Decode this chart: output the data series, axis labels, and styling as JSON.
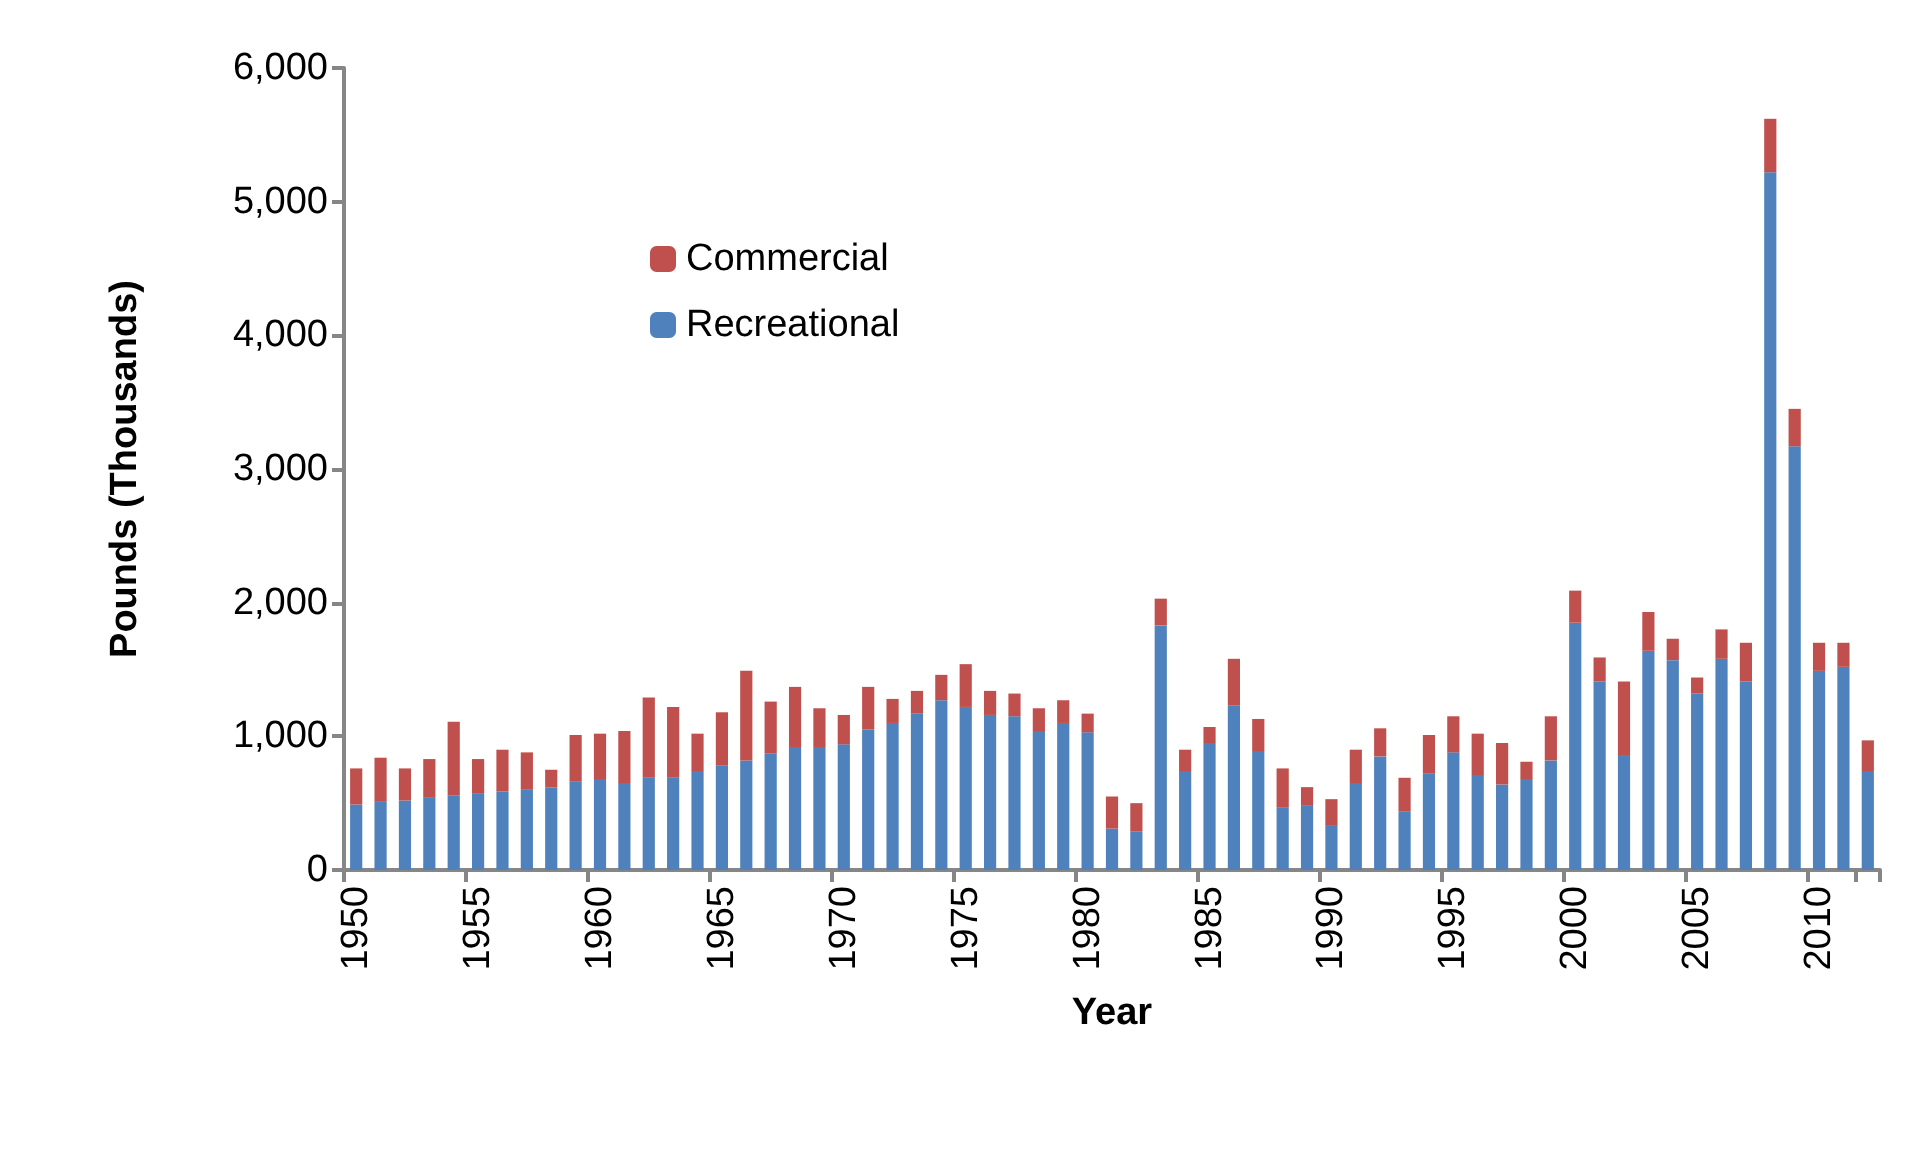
{
  "chart_data": {
    "type": "bar",
    "stacked": true,
    "xlabel": "Year",
    "ylabel": "Pounds (Thousands)",
    "categories": [
      "1950",
      null,
      null,
      null,
      null,
      "1955",
      null,
      null,
      null,
      null,
      "1960",
      null,
      null,
      null,
      null,
      "1965",
      null,
      null,
      null,
      null,
      "1970",
      null,
      null,
      null,
      null,
      "1975",
      null,
      null,
      null,
      null,
      "1980",
      null,
      null,
      null,
      null,
      "1985",
      null,
      null,
      null,
      null,
      "1990",
      null,
      null,
      null,
      null,
      "1995",
      null,
      null,
      null,
      null,
      "2000",
      null,
      null,
      null,
      null,
      "2005",
      null,
      null,
      null,
      null,
      "2010",
      null,
      null
    ],
    "series": [
      {
        "name": "Recreational",
        "color": "#4f81bd",
        "values": [
          490,
          510,
          520,
          540,
          560,
          570,
          590,
          600,
          620,
          660,
          680,
          650,
          690,
          690,
          740,
          780,
          820,
          870,
          920,
          920,
          940,
          1050,
          1100,
          1170,
          1270,
          1220,
          1160,
          1150,
          1040,
          1100,
          1030,
          310,
          290,
          1830,
          740,
          950,
          1230,
          890,
          470,
          480,
          330,
          650,
          850,
          440,
          720,
          880,
          710,
          640,
          680,
          820,
          1850,
          1410,
          860,
          1640,
          1570,
          1320,
          1580,
          1410,
          5220,
          3170,
          1490,
          1520,
          740
        ]
      },
      {
        "name": "Commercial",
        "color": "#c0504d",
        "values": [
          270,
          330,
          240,
          290,
          550,
          260,
          310,
          280,
          130,
          350,
          340,
          390,
          600,
          530,
          280,
          400,
          670,
          390,
          450,
          290,
          220,
          320,
          180,
          170,
          190,
          320,
          180,
          170,
          170,
          170,
          140,
          240,
          210,
          200,
          160,
          120,
          350,
          240,
          290,
          140,
          200,
          250,
          210,
          250,
          290,
          270,
          310,
          310,
          130,
          330,
          240,
          180,
          550,
          290,
          160,
          120,
          220,
          290,
          400,
          280,
          210,
          180,
          230
        ]
      }
    ],
    "ylim": [
      0,
      6000
    ],
    "yticks": [
      0,
      {
        "value": 1000,
        "label": "1,000"
      },
      {
        "value": 2000,
        "label": "2,000"
      },
      {
        "value": 3000,
        "label": "3,000"
      },
      {
        "value": 4000,
        "label": "4,000"
      },
      {
        "value": 5000,
        "label": "5,000"
      },
      {
        "value": 6000,
        "label": "6,000"
      }
    ],
    "grid": false,
    "legend": "top left"
  }
}
